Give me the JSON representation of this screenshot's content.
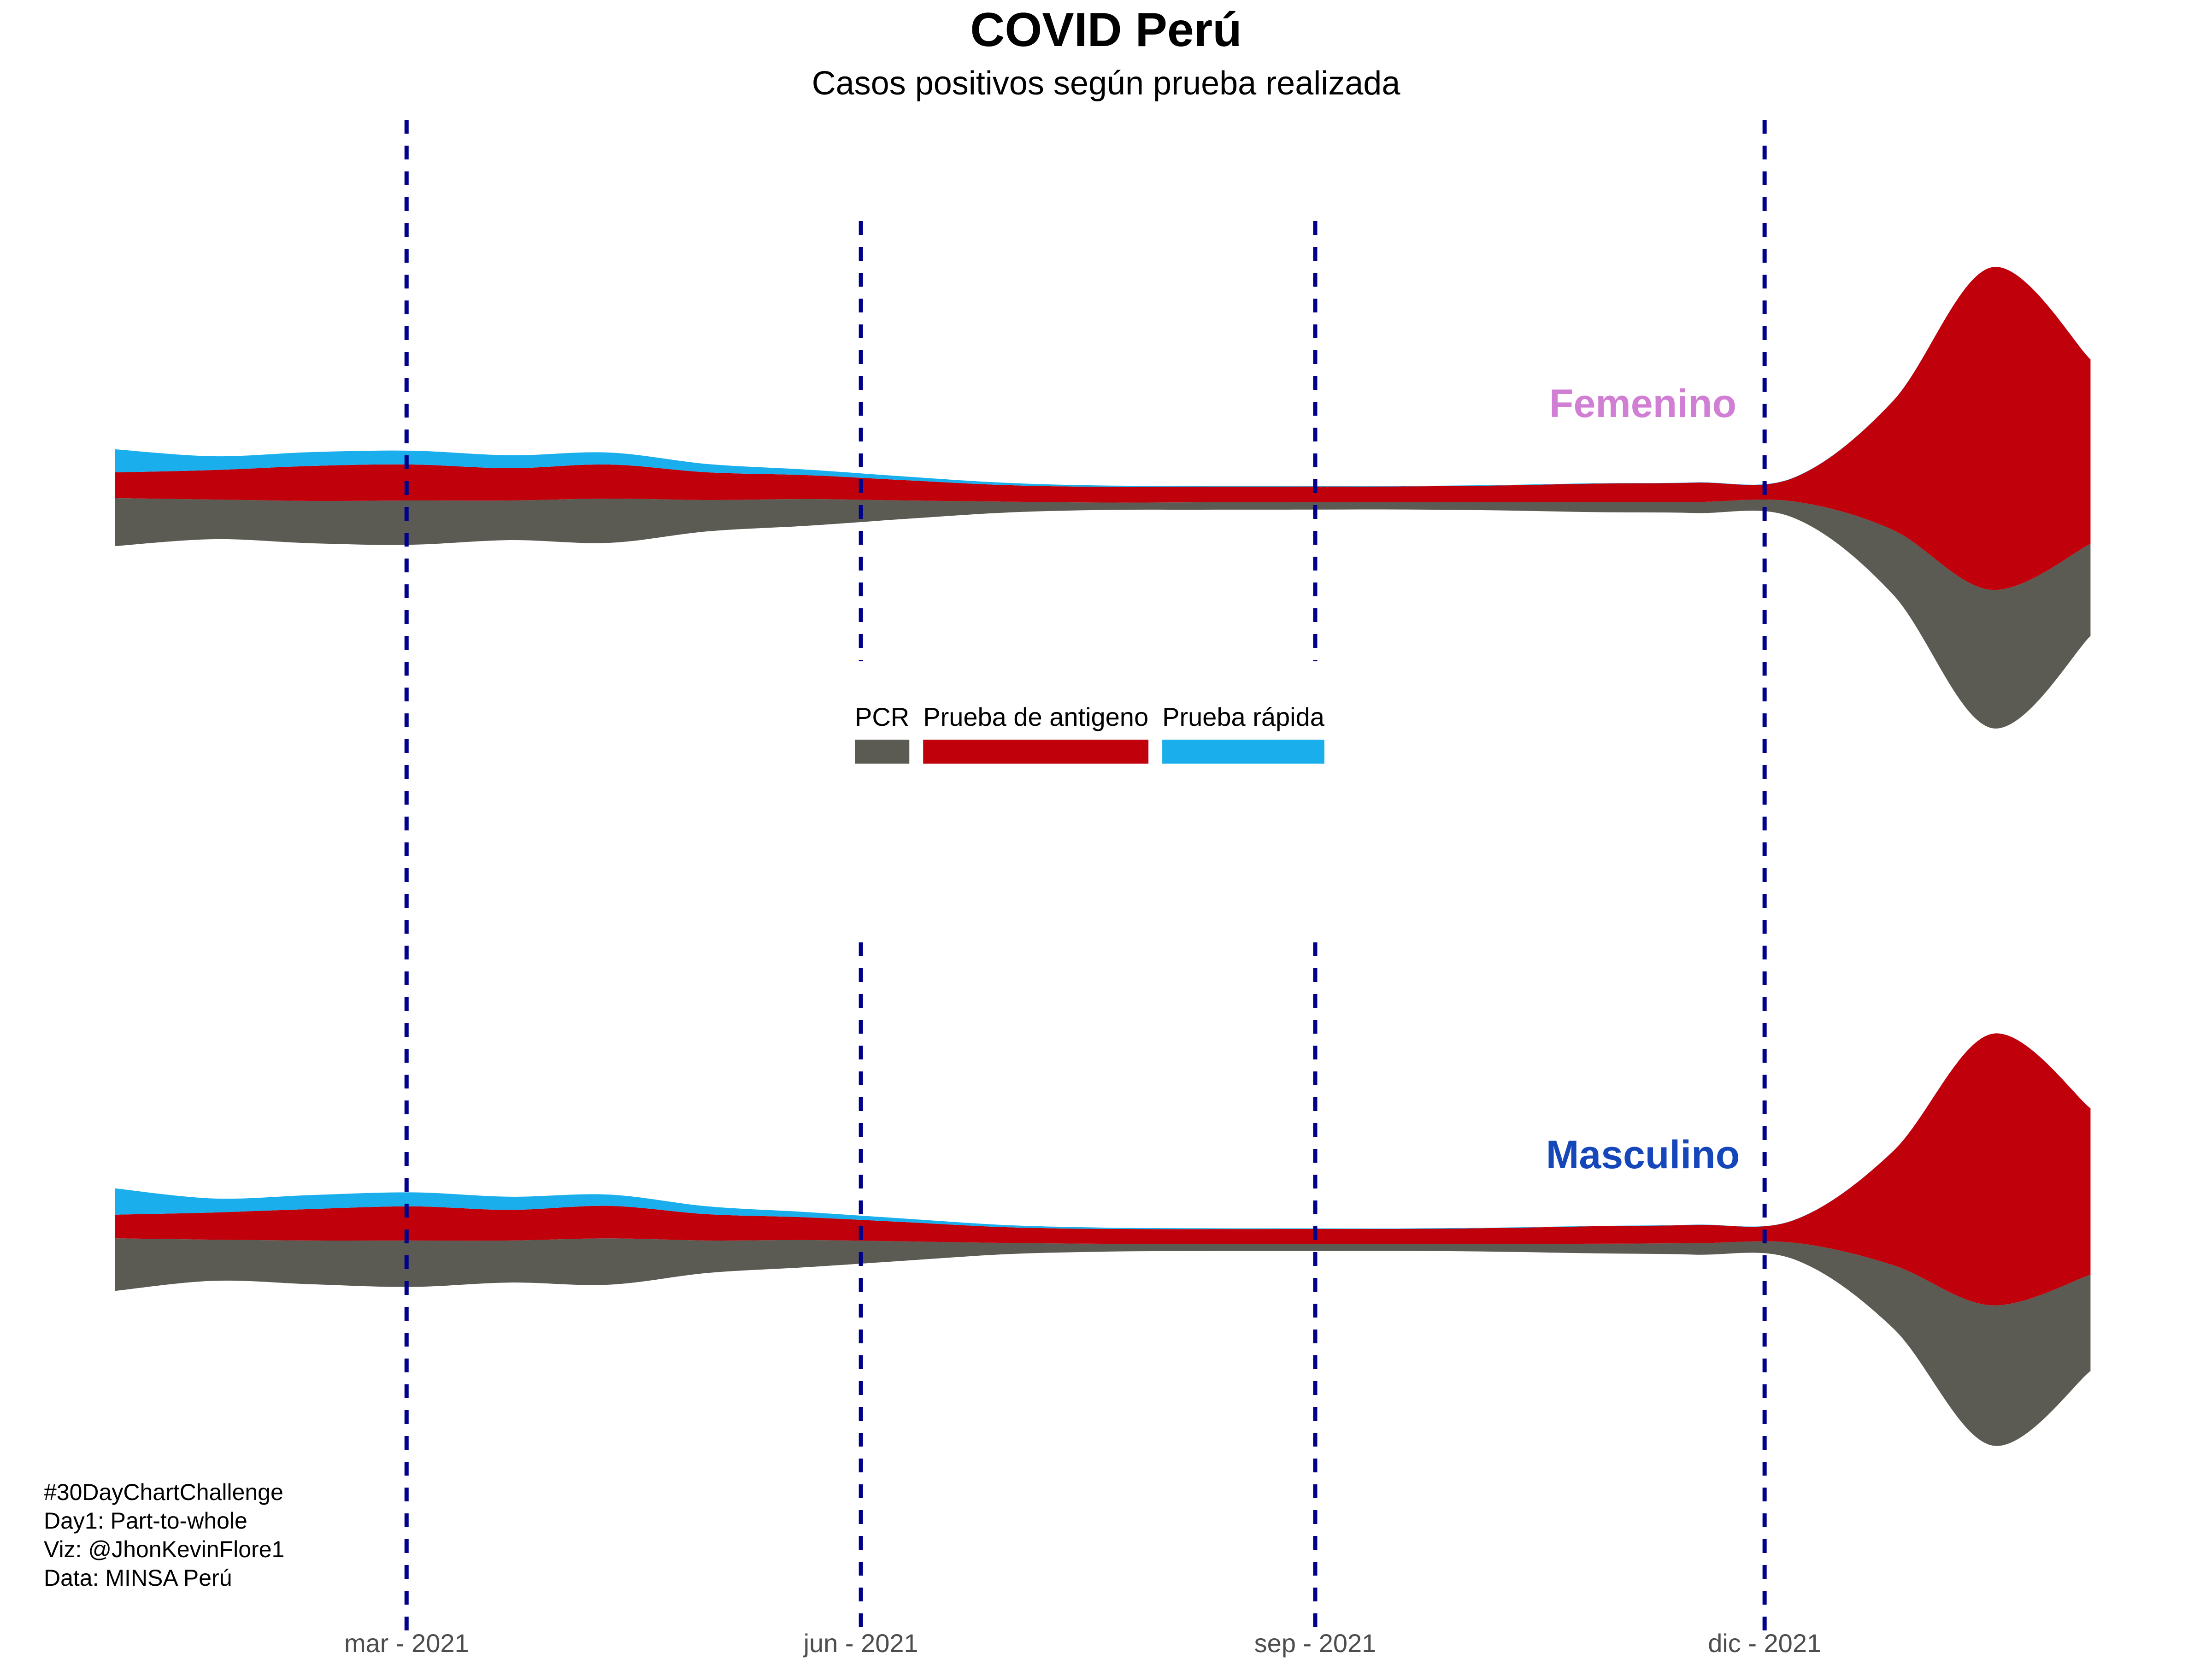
{
  "title": "COVID Perú",
  "subtitle": "Casos positivos según prueba realizada",
  "caption": [
    "#30DayChartChallenge",
    "Day1: Part-to-whole",
    "Viz: @JhonKevinFlore1",
    "Data: MINSA Perú"
  ],
  "chart_data": {
    "type": "area",
    "subtype": "streamgraph",
    "x_axis": {
      "range": [
        "2021-01-01",
        "2022-02-10"
      ],
      "ticks": [
        {
          "date": "2021-03-01",
          "label": "mar - 2021"
        },
        {
          "date": "2021-06-01",
          "label": "jun - 2021"
        },
        {
          "date": "2021-09-01",
          "label": "sep - 2021"
        },
        {
          "date": "2021-12-01",
          "label": "dic - 2021"
        }
      ]
    },
    "y_axis": {
      "visible": false
    },
    "grid": false,
    "reference_lines": {
      "style": "dashed",
      "color": "#00008B",
      "dates": [
        "2021-03-01",
        "2021-06-01",
        "2021-09-01",
        "2021-12-01"
      ]
    },
    "legend": {
      "position": "center",
      "items": [
        {
          "label": "PCR",
          "color": "#5B5B53"
        },
        {
          "label": "Prueba de antigeno",
          "color": "#C0000B"
        },
        {
          "label": "Prueba rápida",
          "color": "#1AAFEC"
        }
      ]
    },
    "dates": [
      "2021-01-01",
      "2021-01-21",
      "2021-02-10",
      "2021-03-02",
      "2021-03-22",
      "2021-04-11",
      "2021-05-01",
      "2021-05-21",
      "2021-06-10",
      "2021-06-30",
      "2021-07-20",
      "2021-08-09",
      "2021-08-29",
      "2021-09-18",
      "2021-10-08",
      "2021-10-28",
      "2021-11-17",
      "2021-12-07",
      "2021-12-27",
      "2022-01-16",
      "2022-02-05"
    ],
    "panels": [
      {
        "name": "Femenino",
        "name_color": "#D17FD4",
        "series": [
          {
            "name": "PCR",
            "values": [
              5200,
              4300,
              4600,
              4800,
              4300,
              4800,
              3400,
              2900,
              2000,
              1200,
              800,
              800,
              800,
              800,
              900,
              1100,
              1200,
              1800,
              7000,
              15000,
              10000
            ]
          },
          {
            "name": "Prueba de antigeno",
            "values": [
              2800,
              3200,
              3800,
              3900,
              3500,
              3700,
              3000,
              2600,
              2200,
              1800,
              1700,
              1700,
              1700,
              1700,
              1800,
              2000,
              2100,
              2600,
              14000,
              35000,
              20000
            ]
          },
          {
            "name": "Prueba rápida",
            "values": [
              2500,
              1500,
              1500,
              1500,
              1400,
              1300,
              900,
              600,
              400,
              250,
              150,
              100,
              80,
              60,
              50,
              40,
              30,
              20,
              10,
              5,
              5
            ]
          }
        ]
      },
      {
        "name": "Masculino",
        "name_color": "#1547BB",
        "series": [
          {
            "name": "PCR",
            "values": [
              6000,
              4700,
              5000,
              5300,
              4800,
              5300,
              3700,
              3100,
              2200,
              1300,
              900,
              800,
              800,
              800,
              900,
              1100,
              1300,
              1900,
              7200,
              16000,
              11000
            ]
          },
          {
            "name": "Prueba de antigeno",
            "values": [
              2700,
              3100,
              3600,
              3900,
              3500,
              3700,
              3000,
              2600,
              2200,
              1800,
              1700,
              1700,
              1700,
              1700,
              1800,
              2000,
              2100,
              2600,
              13000,
              31000,
              19000
            ]
          },
          {
            "name": "Prueba rápida",
            "values": [
              3000,
              1600,
              1600,
              1600,
              1500,
              1300,
              900,
              600,
              400,
              250,
              150,
              100,
              80,
              60,
              50,
              40,
              30,
              20,
              10,
              5,
              5
            ]
          }
        ]
      }
    ]
  }
}
